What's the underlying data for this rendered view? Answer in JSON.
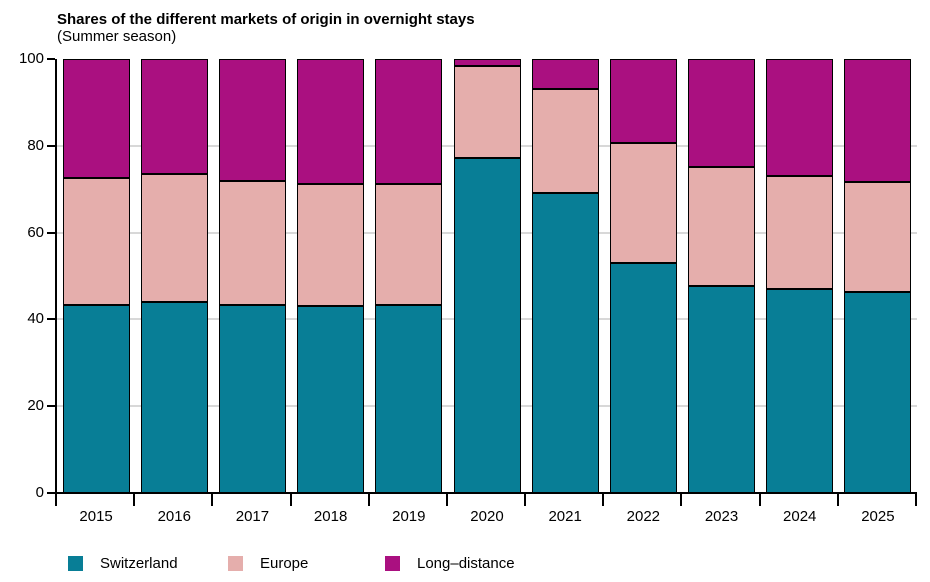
{
  "chart_data": {
    "type": "bar",
    "stacked": true,
    "orientation": "vertical",
    "title": "Shares of the different markets of origin in overnight stays",
    "subtitle": "(Summer season)",
    "categories": [
      "2015",
      "2016",
      "2017",
      "2018",
      "2019",
      "2020",
      "2021",
      "2022",
      "2023",
      "2024",
      "2025"
    ],
    "series": [
      {
        "name": "Switzerland",
        "color": "#087e96",
        "values": [
          43.3,
          44.0,
          43.4,
          43.0,
          43.4,
          77.2,
          69.2,
          53.0,
          47.8,
          46.9,
          46.4
        ]
      },
      {
        "name": "Europe",
        "color": "#e5aeac",
        "values": [
          29.2,
          29.5,
          28.4,
          28.2,
          27.8,
          21.2,
          24.0,
          27.6,
          27.4,
          26.1,
          25.3
        ]
      },
      {
        "name": "Long–distance",
        "color": "#aa1080",
        "values": [
          27.5,
          26.5,
          28.2,
          28.8,
          28.8,
          1.6,
          6.8,
          19.4,
          24.8,
          27.0,
          28.3
        ]
      }
    ],
    "ylim": [
      0,
      100
    ],
    "y_ticks": [
      0,
      20,
      40,
      60,
      80,
      100
    ],
    "grid": "horizontal",
    "gridline_values": [
      20,
      40,
      60,
      80
    ],
    "legend_position": "bottom"
  },
  "colors": {
    "background": "#ffffff",
    "grid": "#d8d8d8",
    "axis": "#000000",
    "bar_border": "#000000"
  }
}
